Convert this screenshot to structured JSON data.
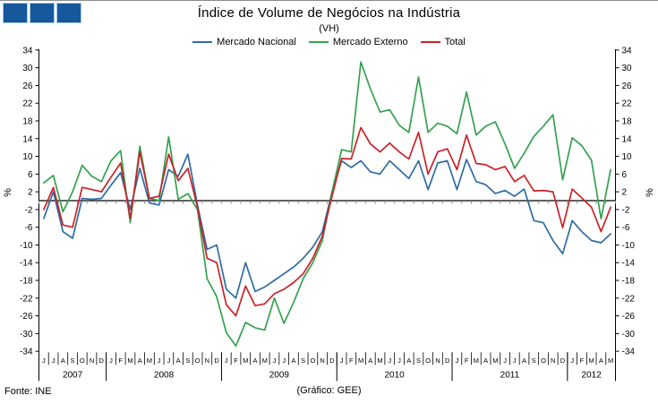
{
  "header": {
    "title": "Índice de Volume de Negócios na Indústria",
    "subtitle": "(VH)"
  },
  "legend": [
    {
      "label": "Mercado Nacional",
      "color": "#2e6ca4"
    },
    {
      "label": "Mercado Externo",
      "color": "#35a14f"
    },
    {
      "label": "Total",
      "color": "#cb2127"
    }
  ],
  "footer": {
    "source": "Fonte: INE",
    "credit": "(Gráfico:  GEE)"
  },
  "axis": {
    "unit_label": "%",
    "y_ticks": [
      34,
      30,
      26,
      22,
      18,
      14,
      10,
      6,
      2,
      -2,
      -6,
      -10,
      -14,
      -18,
      -22,
      -26,
      -30,
      -34
    ]
  },
  "colors": {
    "logo_fill": "#15589c",
    "logo_border": "#a9c7e7",
    "axis": "#000000",
    "month_tick": "#8a8a8a"
  },
  "chart_data": {
    "type": "line",
    "title": "Índice de Volume de Negócios na Indústria",
    "subtitle": "(VH)",
    "ylabel": "%",
    "ylim": [
      -34,
      34
    ],
    "y_tick_step": 4,
    "zero_axis": true,
    "grid": false,
    "legend_position": "top",
    "x_groups": [
      {
        "year": "2007",
        "months": [
          "J",
          "J",
          "A",
          "S",
          "O",
          "N",
          "D"
        ]
      },
      {
        "year": "2008",
        "months": [
          "J",
          "F",
          "M",
          "A",
          "M",
          "J",
          "J",
          "A",
          "S",
          "O",
          "N",
          "D"
        ]
      },
      {
        "year": "2009",
        "months": [
          "J",
          "F",
          "M",
          "A",
          "M",
          "J",
          "J",
          "A",
          "S",
          "O",
          "N",
          "D"
        ]
      },
      {
        "year": "2010",
        "months": [
          "J",
          "F",
          "M",
          "A",
          "M",
          "J",
          "J",
          "A",
          "S",
          "O",
          "N",
          "D"
        ]
      },
      {
        "year": "2011",
        "months": [
          "J",
          "F",
          "M",
          "A",
          "M",
          "J",
          "J",
          "A",
          "S",
          "O",
          "N",
          "D"
        ]
      },
      {
        "year": "2012",
        "months": [
          "J",
          "F",
          "M",
          "A",
          "M"
        ]
      }
    ],
    "series": [
      {
        "name": "Mercado Nacional",
        "color": "#2e6ca4",
        "values": [
          -4.0,
          2.0,
          -7.0,
          -8.5,
          0.5,
          0.3,
          0.5,
          3.5,
          6.3,
          -2.0,
          7.3,
          -0.5,
          -1.0,
          7.0,
          5.5,
          10.5,
          -1.0,
          -11.0,
          -10.0,
          -20.0,
          -22.0,
          -14.0,
          -20.5,
          -19.5,
          -18.0,
          -16.5,
          -15.0,
          -13.0,
          -10.5,
          -7.0,
          2.0,
          9.0,
          7.5,
          9.0,
          6.5,
          6.0,
          9.0,
          7.0,
          5.0,
          9.0,
          2.5,
          8.5,
          9.0,
          2.5,
          9.3,
          4.3,
          3.6,
          1.6,
          2.3,
          1.0,
          2.6,
          -4.5,
          -5.0,
          -9.0,
          -12.0,
          -4.5,
          -7.0,
          -9.0,
          -9.5,
          -7.5
        ]
      },
      {
        "name": "Mercado Externo",
        "color": "#35a14f",
        "values": [
          4.0,
          5.7,
          -2.5,
          2.0,
          8.0,
          5.5,
          4.3,
          9.0,
          11.3,
          -5.0,
          12.3,
          0.5,
          0.0,
          14.4,
          0.3,
          1.6,
          -2.0,
          -17.6,
          -21.7,
          -29.8,
          -32.8,
          -27.5,
          -28.7,
          -29.2,
          -22.0,
          -27.7,
          -23.0,
          -17.6,
          -14.0,
          -9.0,
          2.0,
          11.5,
          11.0,
          31.3,
          25.2,
          20.0,
          20.5,
          17.0,
          15.4,
          27.9,
          15.4,
          17.5,
          16.8,
          15.1,
          24.5,
          14.8,
          16.8,
          17.8,
          12.8,
          7.3,
          10.7,
          14.5,
          16.8,
          19.4,
          4.7,
          14.2,
          12.4,
          9.1,
          -4.1,
          7.0
        ]
      },
      {
        "name": "Total",
        "color": "#cb2127",
        "values": [
          -2.0,
          3.0,
          -5.5,
          -6.0,
          3.0,
          2.5,
          2.0,
          5.3,
          8.5,
          -4.0,
          11.0,
          0.5,
          1.0,
          10.5,
          4.5,
          7.3,
          -1.5,
          -13.0,
          -14.0,
          -23.5,
          -26.0,
          -19.3,
          -23.7,
          -23.3,
          -21.0,
          -20.0,
          -18.5,
          -16.5,
          -13.0,
          -8.0,
          1.0,
          9.5,
          9.4,
          16.5,
          12.8,
          11.0,
          13.0,
          11.0,
          9.4,
          15.4,
          6.0,
          11.0,
          11.7,
          7.0,
          14.8,
          8.4,
          8.1,
          7.0,
          7.7,
          4.3,
          5.7,
          2.2,
          2.3,
          2.0,
          -6.1,
          2.6,
          0.6,
          -1.5,
          -7.0,
          -1.5
        ]
      }
    ]
  }
}
